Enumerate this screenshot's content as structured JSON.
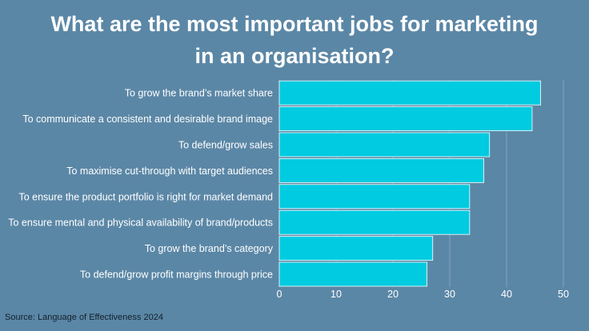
{
  "title_line1": "What are the most important jobs for marketing",
  "title_line2": "in an organisation?",
  "source": "Source: Language of Effectiveness 2024",
  "colors": {
    "background": "#5b87a6",
    "bar": "#00cbe0",
    "bar_stroke": "#ffffff",
    "text": "#ffffff",
    "grid": "#7fa3bd"
  },
  "chart_data": {
    "type": "bar",
    "orientation": "horizontal",
    "categories": [
      "To grow the brand’s market share",
      "To communicate a consistent and desirable brand image",
      "To defend/grow sales",
      "To maximise cut-through with target audiences",
      "To ensure the product portfolio is right for market demand",
      "To ensure mental and physical availability of brand/products",
      "To grow the brand’s category",
      "To defend/grow profit margins through price"
    ],
    "values": [
      46,
      44.5,
      37,
      36,
      33.5,
      33.5,
      27,
      26
    ],
    "x_ticks": [
      "0",
      "10",
      "20",
      "30",
      "40",
      "50"
    ],
    "xlim": [
      0,
      50
    ],
    "grid": true
  }
}
